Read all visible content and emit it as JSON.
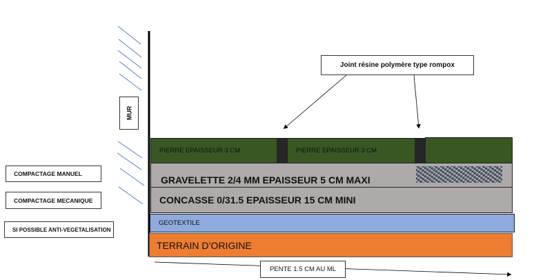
{
  "labels": {
    "mur": "MUR",
    "joint": "Joint résine polymère type rompox",
    "compactage_manuel": "COMPACTAGE MANUEL",
    "compactage_mecanique": "COMPACTAGE MECANIQUE",
    "anti_vegetalisation": "SI POSSIBLE ANTI-VEGETALISATION",
    "pente": "PENTE 1.5 CM AU ML"
  },
  "layers": {
    "pierre_1": "PIERRE EPAISSEUR 3 CM",
    "pierre_2": "PIERRE EPAISSEUR 3 CM",
    "gravelette": "GRAVELETTE 2/4 MM EPAISSEUR 5 CM MAXI",
    "concasse": "CONCASSE 0/31.5 EPAISSEUR 15 CM MINI",
    "geotextile": "GEOTEXTILE",
    "terrain": "TERRAIN D’ORIGINE"
  },
  "colors": {
    "pierre": "#385723",
    "joint": "#262626",
    "gravel_layer": "#aeaaaa",
    "geotextile": "#8faadc",
    "terrain": "#ed7d31",
    "hatch": "#4472c4"
  }
}
